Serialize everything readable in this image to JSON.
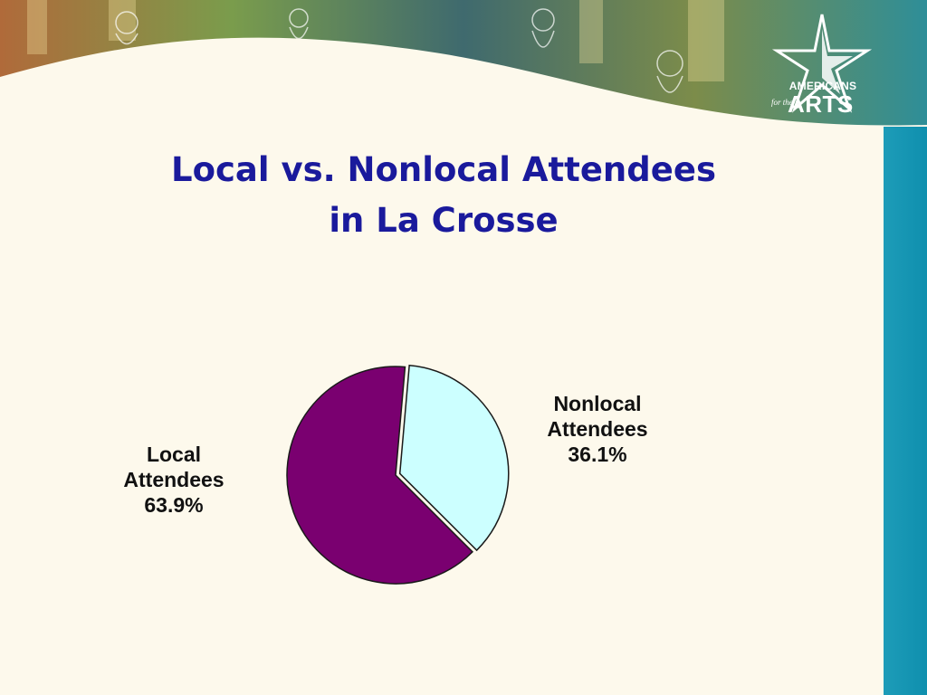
{
  "slide": {
    "title_line1": "Local vs. Nonlocal Attendees",
    "title_line2": "in La Crosse"
  },
  "logo": {
    "line1": "AMERICANS",
    "small": "for the",
    "big": "ARTS",
    "icon": "star-icon"
  },
  "colors": {
    "background": "#fdf9ec",
    "title": "#1a1a9c",
    "sidebar": "#1d9cb8",
    "local": "#7a0070",
    "nonlocal": "#ccffff"
  },
  "chart_data": {
    "type": "pie",
    "title": "",
    "slices": [
      {
        "name": "Local",
        "name_line2": "Attendees",
        "value": 63.9,
        "value_label": "63.9%",
        "color": "#7a0070"
      },
      {
        "name": "Nonlocal",
        "name_line2": "Attendees",
        "value": 36.1,
        "value_label": "36.1%",
        "color": "#ccffff"
      }
    ],
    "nonlocal_exploded": true
  }
}
